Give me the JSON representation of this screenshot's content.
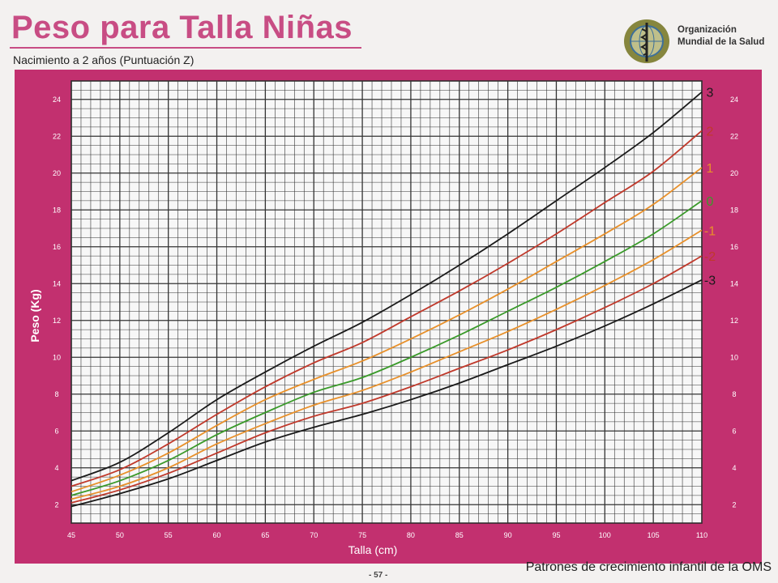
{
  "page": {
    "title": "Peso para Talla Niñas",
    "subtitle": "Nacimiento a 2 años",
    "subtitle_z": "(Puntuación Z)",
    "org_line1": "Organización",
    "org_line2": "Mundial de la Salud",
    "logo_icon": "who-emblem-icon",
    "footer": "Patrones de crecimiento infantil de la OMS",
    "page_number": "- 57 -"
  },
  "colors": {
    "panel": "#c2306f",
    "title": "#c84d84",
    "z3": "#1a1a1a",
    "z2": "#c0392b",
    "z1": "#e8902a",
    "z0": "#3a9a2a"
  },
  "chart_data": {
    "type": "line",
    "xlabel": "Talla (cm)",
    "ylabel": "Peso (Kg)",
    "xlim": [
      45,
      110
    ],
    "ylim": [
      1,
      25
    ],
    "x_ticks": [
      45,
      50,
      55,
      60,
      65,
      70,
      75,
      80,
      85,
      90,
      95,
      100,
      105,
      110
    ],
    "y_ticks": [
      2,
      4,
      6,
      8,
      10,
      12,
      14,
      16,
      18,
      20,
      22,
      24
    ],
    "grid": true,
    "x": [
      45,
      50,
      55,
      60,
      65,
      70,
      75,
      80,
      85,
      90,
      95,
      100,
      105,
      110
    ],
    "series": [
      {
        "name": "3",
        "color": "#1a1a1a",
        "values": [
          3.3,
          4.3,
          5.9,
          7.7,
          9.2,
          10.6,
          11.9,
          13.4,
          15.0,
          16.7,
          18.5,
          20.3,
          22.2,
          24.4
        ]
      },
      {
        "name": "2",
        "color": "#c0392b",
        "values": [
          3.0,
          3.9,
          5.3,
          6.9,
          8.4,
          9.7,
          10.8,
          12.2,
          13.6,
          15.1,
          16.7,
          18.4,
          20.1,
          22.3
        ]
      },
      {
        "name": "1",
        "color": "#e8902a",
        "values": [
          2.7,
          3.6,
          4.8,
          6.3,
          7.7,
          8.8,
          9.8,
          11.0,
          12.3,
          13.7,
          15.2,
          16.7,
          18.3,
          20.3
        ]
      },
      {
        "name": "0",
        "color": "#3a9a2a",
        "values": [
          2.5,
          3.3,
          4.4,
          5.8,
          7.0,
          8.1,
          8.9,
          10.0,
          11.2,
          12.5,
          13.8,
          15.2,
          16.7,
          18.5
        ]
      },
      {
        "name": "-1",
        "color": "#e8902a",
        "values": [
          2.3,
          3.0,
          4.0,
          5.3,
          6.4,
          7.4,
          8.2,
          9.2,
          10.3,
          11.4,
          12.6,
          13.9,
          15.3,
          16.9
        ]
      },
      {
        "name": "-2",
        "color": "#c0392b",
        "values": [
          2.1,
          2.8,
          3.7,
          4.8,
          5.9,
          6.8,
          7.5,
          8.4,
          9.4,
          10.4,
          11.5,
          12.7,
          14.0,
          15.5
        ]
      },
      {
        "name": "-3",
        "color": "#1a1a1a",
        "values": [
          1.9,
          2.6,
          3.4,
          4.4,
          5.4,
          6.2,
          6.9,
          7.7,
          8.6,
          9.6,
          10.6,
          11.7,
          12.9,
          14.2
        ]
      }
    ]
  }
}
